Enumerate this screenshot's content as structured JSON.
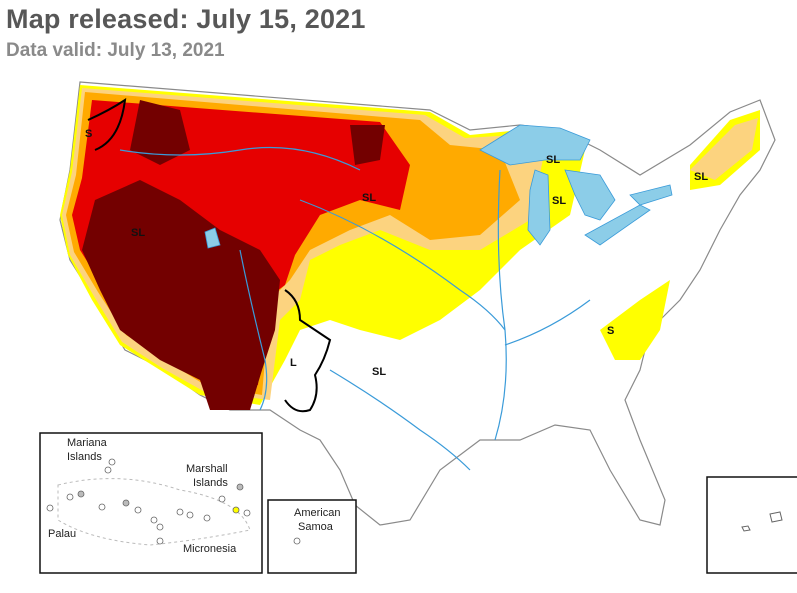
{
  "header": {
    "title": "Map released: July 15, 2021",
    "subtitle": "Data valid: July 13, 2021"
  },
  "colors": {
    "d0": "#ffff00",
    "d1": "#fcd37f",
    "d2": "#ffaa00",
    "d3": "#e60000",
    "d4": "#730000",
    "water": "#8ccde8",
    "rivers": "#3a9bd9",
    "borders": "#9a9a9a"
  },
  "impact_labels": {
    "s": "S",
    "sl": "SL",
    "l": "L"
  },
  "insets": {
    "pacific": {
      "mariana": "Mariana",
      "mariana2": "Islands",
      "marshall": "Marshall",
      "marshall2": "Islands",
      "palau": "Palau",
      "micronesia": "Micronesia"
    },
    "samoa": {
      "line1": "American",
      "line2": "Samoa"
    }
  }
}
